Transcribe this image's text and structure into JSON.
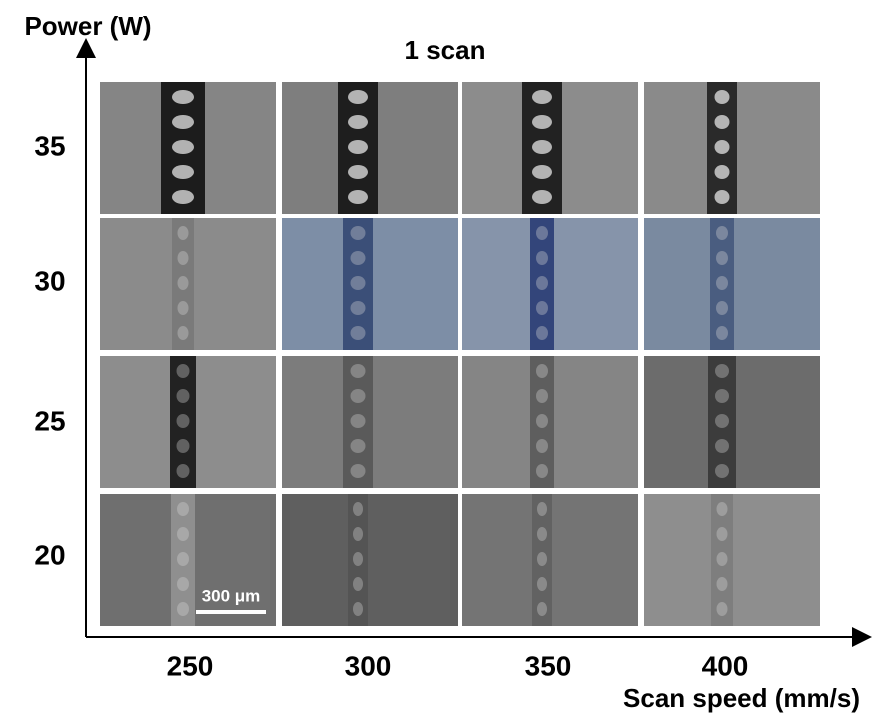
{
  "title": "1 scan",
  "y_axis": {
    "label": "Power (W)",
    "ticks": [
      "35",
      "30",
      "25",
      "20"
    ]
  },
  "x_axis": {
    "label": "Scan speed (mm/s)",
    "ticks": [
      "250",
      "300",
      "350",
      "400"
    ]
  },
  "scale_bar": "300 μm"
}
